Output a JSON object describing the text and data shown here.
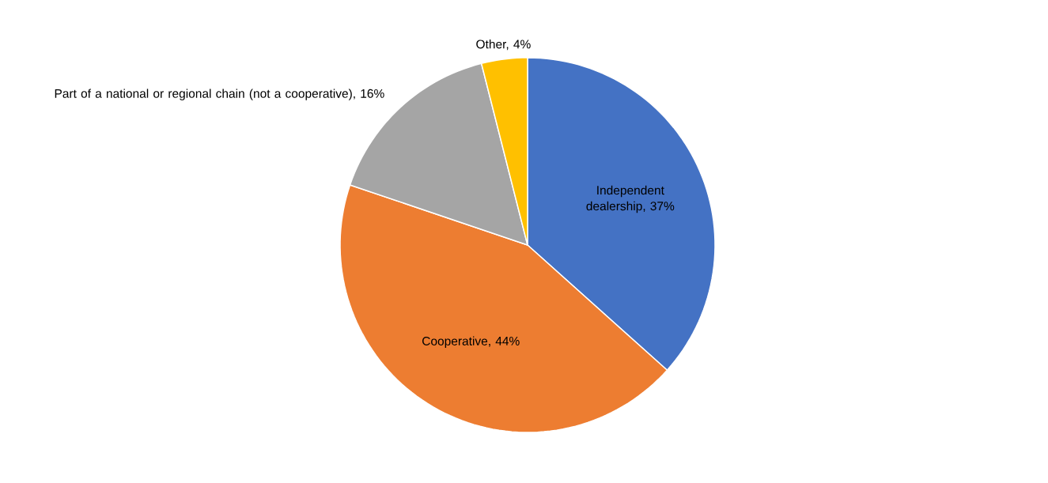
{
  "chart_data": {
    "type": "pie",
    "categories": [
      "Independent dealership, 37%",
      "Cooperative, 44%",
      "Part of a national or regional chain (not a cooperative), 16%",
      "Other, 4%"
    ],
    "values": [
      37,
      44,
      16,
      4
    ],
    "colors": [
      "#4472c4",
      "#ed7d31",
      "#a5a5a5",
      "#ffc000"
    ]
  }
}
